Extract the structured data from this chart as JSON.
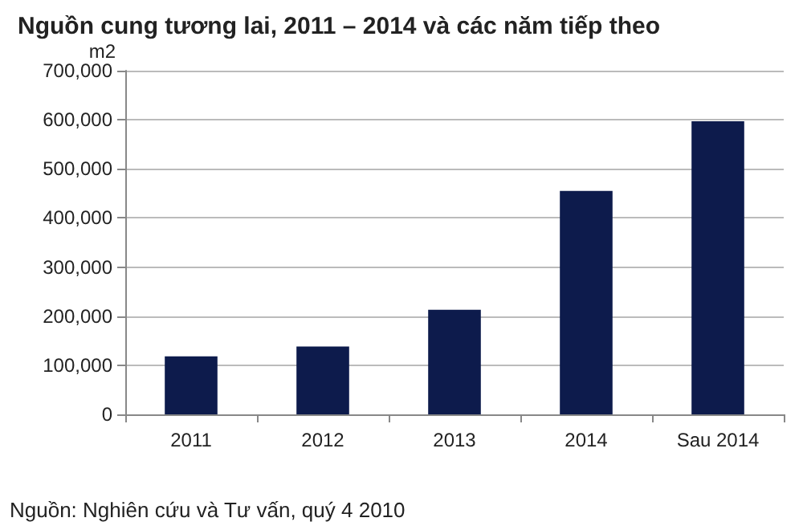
{
  "chart_data": {
    "type": "bar",
    "title": "Nguồn cung tương lai, 2011 – 2014 và các năm tiếp theo",
    "ylabel": "m2",
    "categories": [
      "2011",
      "2012",
      "2013",
      "2014",
      "Sau 2014"
    ],
    "values": [
      118000,
      138000,
      213000,
      455000,
      597000
    ],
    "color": "#0d1b4c",
    "ylim": [
      0,
      700000
    ],
    "yticks": [
      0,
      {
        "value": 100000,
        "label": "100,000"
      },
      {
        "value": 200000,
        "label": "200,000"
      },
      {
        "value": 300000,
        "label": "300,000"
      },
      {
        "value": 400000,
        "label": "400,000"
      },
      {
        "value": 500000,
        "label": "500,000"
      },
      {
        "value": 600000,
        "label": "600,000"
      },
      {
        "value": 700000,
        "label": "700,000"
      }
    ],
    "grid": "y",
    "annotations": [
      "Nguồn: Nghiên cứu và Tư vấn, quý 4 2010"
    ]
  }
}
